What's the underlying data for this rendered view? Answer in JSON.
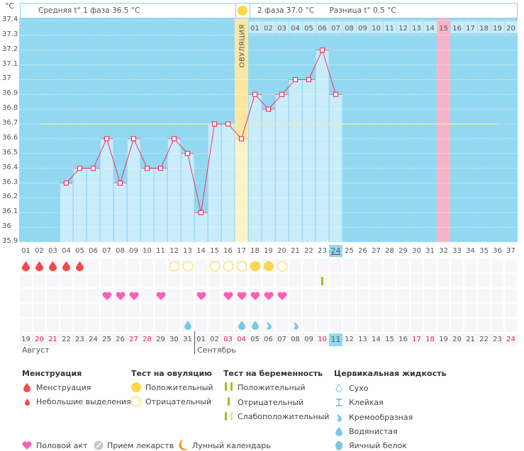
{
  "unit_label": "°C",
  "header": {
    "phase1_text": "Средняя t° 1 фаза 36.5 °C",
    "phase2_text": "2 фаза 37.0 °C",
    "difference_text": "Разница t° 0.5 °C",
    "ovulation_label": "ОВУЛЯЦИЯ"
  },
  "colors": {
    "plot_bg": "#93d8f1",
    "bar_fill": "#c9ecfb",
    "line": "#ee3366",
    "coverline": "#f3e9a8",
    "ovulation_band": "#fbe7a3",
    "expected_period": "#f9b3c8",
    "today_highlight": "#93d8f1",
    "weekend_text": "#e0225a"
  },
  "chart_data": {
    "type": "line",
    "title": "",
    "xlabel": "",
    "ylabel": "°C",
    "ylim": [
      35.9,
      37.4
    ],
    "yticks": [
      "37.4",
      "37.3",
      "37.2",
      "37.1",
      "37",
      "36.9",
      "36.8",
      "36.7",
      "36.6",
      "36.5",
      "36.4",
      "36.3",
      "36.2",
      "36.1",
      "36",
      "35.9"
    ],
    "cycle_days": [
      "01",
      "02",
      "03",
      "04",
      "05",
      "06",
      "07",
      "08",
      "09",
      "10",
      "11",
      "12",
      "13",
      "14",
      "15",
      "16",
      "17",
      "18",
      "19",
      "20",
      "21",
      "22",
      "23",
      "24",
      "25",
      "26",
      "27",
      "28",
      "29",
      "30",
      "31",
      "32",
      "33",
      "34",
      "35",
      "36",
      "37"
    ],
    "series": [
      {
        "name": "Базальная температура",
        "values": [
          null,
          null,
          null,
          36.3,
          36.4,
          36.4,
          36.6,
          36.3,
          36.6,
          36.4,
          36.4,
          36.6,
          36.5,
          36.1,
          36.7,
          36.7,
          36.6,
          36.9,
          36.8,
          36.9,
          37.0,
          37.0,
          37.2,
          36.9,
          null,
          null,
          null,
          null,
          null,
          null,
          null,
          null,
          null,
          null,
          null,
          null,
          null
        ]
      }
    ],
    "coverline": 36.7,
    "coverline_range_days": [
      2,
      36
    ],
    "ovulation_day": 17,
    "expected_period_day": 32,
    "today_day": 24,
    "phase2_day_numbers": [
      "01",
      "02",
      "03",
      "04",
      "05",
      "06",
      "07",
      "08",
      "09",
      "10",
      "11",
      "12",
      "13",
      "14",
      "15",
      "16",
      "17",
      "18",
      "19",
      "20"
    ],
    "phase2_highlight": "15",
    "grid": true,
    "legend": "bottom"
  },
  "calendar": {
    "dates": [
      "19",
      "20",
      "21",
      "22",
      "23",
      "24",
      "25",
      "26",
      "27",
      "28",
      "29",
      "30",
      "31",
      "01",
      "02",
      "03",
      "04",
      "05",
      "06",
      "07",
      "08",
      "09",
      "10",
      "11",
      "12",
      "13",
      "14",
      "15",
      "16",
      "17",
      "18",
      "19",
      "20",
      "21",
      "22",
      "23",
      "24"
    ],
    "weekend_flags": [
      0,
      1,
      1,
      0,
      0,
      0,
      0,
      0,
      1,
      1,
      0,
      0,
      0,
      0,
      0,
      1,
      1,
      0,
      0,
      0,
      0,
      0,
      1,
      0,
      0,
      0,
      0,
      0,
      0,
      1,
      1,
      0,
      0,
      0,
      0,
      0,
      1
    ],
    "month1": "Август",
    "month2": "Сентябрь",
    "month_break_index": 13,
    "today_index": 23
  },
  "markers": {
    "menstruation": [
      1,
      2,
      3,
      4,
      5
    ],
    "ovulation_test_negative": [
      12,
      13,
      15,
      16,
      17,
      20
    ],
    "ovulation_test_positive": [
      18,
      19
    ],
    "pregnancy_test_negative": [
      23
    ],
    "intercourse": [
      7,
      8,
      9,
      11,
      14,
      16,
      17,
      18,
      19,
      20
    ],
    "fluid_watery": [
      13,
      17,
      18
    ],
    "fluid_creamy": [
      19,
      21
    ]
  },
  "legend": {
    "groups": [
      {
        "title": "Менструация",
        "items": [
          "Менструация",
          "Небольшие выделения"
        ]
      },
      {
        "title": "Тест на овуляцию",
        "items": [
          "Положительный",
          "Отрицательный"
        ]
      },
      {
        "title": "Тест на беременность",
        "items": [
          "Положительный",
          "Отрицательный",
          "Слабоположительный"
        ]
      },
      {
        "title": "Цервикальная жидкость",
        "items": [
          "Сухо",
          "Клейкая",
          "Кремообразная",
          "Водянистая",
          "Яичный белок"
        ]
      }
    ],
    "bottom": [
      "Половой акт",
      "Прием лекарств",
      "Лунный календарь"
    ]
  }
}
